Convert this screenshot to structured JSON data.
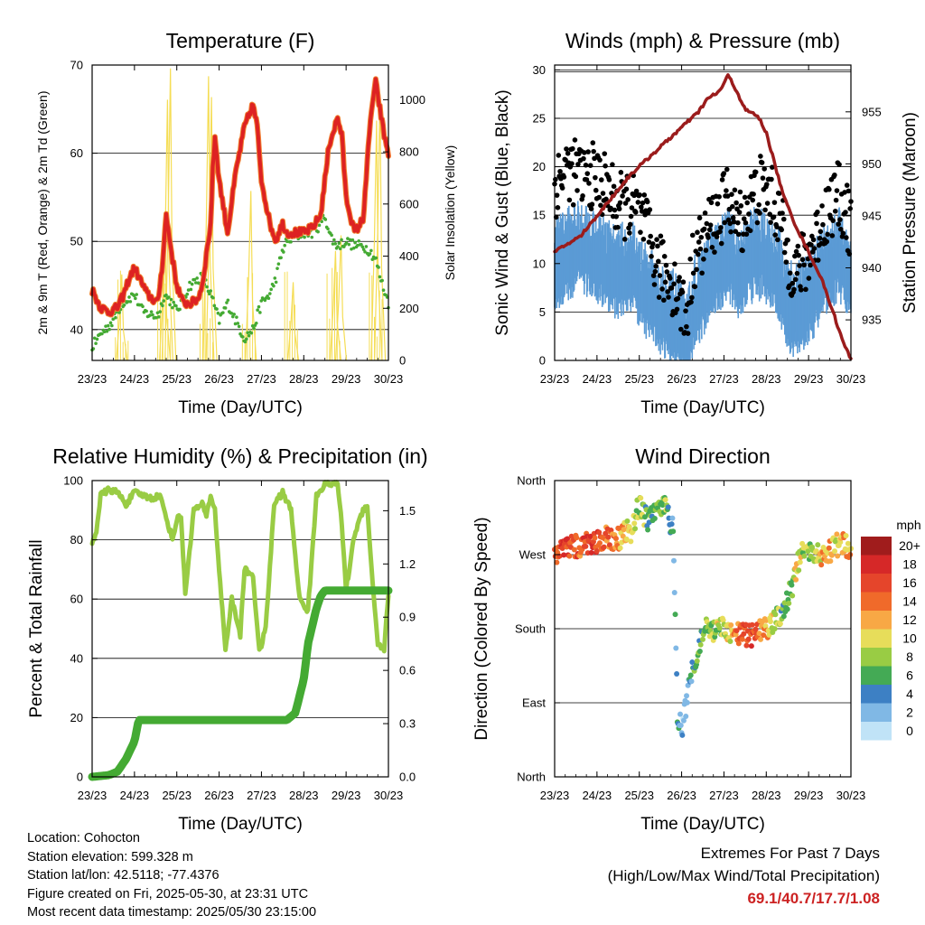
{
  "chart_data": [
    {
      "type": "line",
      "title": "Temperature (F)",
      "xlabel": "Time (Day/UTC)",
      "ylabel": "2m & 9m T (Red, Orange) & 2m Td (Green)",
      "ylabel_right": "Solar Insolation (Yellow)",
      "x_tick_labels": [
        "23/23",
        "24/23",
        "25/23",
        "26/23",
        "27/23",
        "28/23",
        "29/23",
        "30/23"
      ],
      "x_range_days": [
        0,
        7
      ],
      "ylim": [
        36.5,
        70
      ],
      "yticks": [
        40,
        50,
        60,
        70
      ],
      "ylim_right": [
        0,
        1133
      ],
      "yticks_right": [
        0,
        200,
        400,
        600,
        800,
        1000
      ],
      "grid_y": [
        40,
        50,
        60,
        70
      ],
      "colors": {
        "t2m": "#dd2222",
        "t9m": "#f08030",
        "td": "#44aa33",
        "solar": "#f5dd55"
      },
      "series": [
        {
          "name": "2m T",
          "color": "#dd2222",
          "x": [
            0,
            0.2,
            0.4,
            0.6,
            0.75,
            0.85,
            1.0,
            1.3,
            1.55,
            1.65,
            1.75,
            1.9,
            2.0,
            2.15,
            2.35,
            2.5,
            2.6,
            2.8,
            2.85,
            2.9,
            3.0,
            3.2,
            3.4,
            3.6,
            3.8,
            3.9,
            4.0,
            4.2,
            4.35,
            4.4,
            4.5,
            4.6,
            4.8,
            5.0,
            5.2,
            5.4,
            5.6,
            5.8,
            5.9,
            6.0,
            6.2,
            6.4,
            6.55,
            6.6,
            6.7,
            6.8,
            6.9,
            7.0
          ],
          "y": [
            44.5,
            42.5,
            42,
            42.5,
            44,
            45.5,
            47,
            44,
            43,
            47,
            53,
            48,
            45,
            43,
            43,
            43.5,
            45,
            52,
            58,
            62,
            57,
            51,
            58,
            63,
            65.5,
            63,
            57,
            52,
            50,
            51,
            52,
            51,
            51,
            51,
            51.5,
            53,
            61,
            64,
            62,
            55,
            51,
            52.5,
            62,
            65,
            68,
            65,
            62,
            60
          ]
        },
        {
          "name": "Td",
          "color": "#44aa33",
          "x": [
            0,
            0.2,
            0.5,
            0.7,
            1.0,
            1.2,
            1.5,
            1.6,
            1.7,
            1.9,
            2.0,
            2.3,
            2.6,
            2.8,
            3.0,
            3.2,
            3.4,
            3.6,
            3.8,
            4.0,
            4.2,
            4.35,
            4.5,
            4.6,
            4.8,
            5.0,
            5.2,
            5.4,
            5.5,
            5.6,
            5.7,
            5.8,
            6.0,
            6.2,
            6.4,
            6.55,
            6.7,
            6.8,
            7.0
          ],
          "y": [
            38,
            39.5,
            41,
            43,
            44,
            42,
            41.5,
            42,
            44,
            43,
            42,
            45,
            46,
            44,
            41,
            43,
            41,
            39,
            40,
            43,
            44,
            46,
            49,
            50,
            50.5,
            51,
            51,
            52,
            53,
            51,
            50,
            49.5,
            50,
            49.5,
            49.5,
            49,
            48,
            46,
            43
          ]
        },
        {
          "name": "Solar Insolation",
          "color": "#f5dd55",
          "axis": "right",
          "peaks": [
            {
              "x": 0.7,
              "v": 330
            },
            {
              "x": 1.72,
              "v": 500
            },
            {
              "x": 1.78,
              "v": 1000
            },
            {
              "x": 1.85,
              "v": 1120
            },
            {
              "x": 2.75,
              "v": 1090
            },
            {
              "x": 2.82,
              "v": 1010
            },
            {
              "x": 3.75,
              "v": 650
            },
            {
              "x": 4.75,
              "v": 300
            },
            {
              "x": 5.75,
              "v": 420
            },
            {
              "x": 5.88,
              "v": 480
            },
            {
              "x": 6.72,
              "v": 920
            },
            {
              "x": 6.8,
              "v": 1020
            }
          ]
        }
      ]
    },
    {
      "type": "scatter",
      "title": "Winds (mph) & Pressure (mb)",
      "xlabel": "Time (Day/UTC)",
      "ylabel": "Sonic Wind & Gust (Blue, Black)",
      "ylabel_right": "Station Pressure (Maroon)",
      "x_tick_labels": [
        "23/23",
        "24/23",
        "25/23",
        "26/23",
        "27/23",
        "28/23",
        "29/23",
        "30/23"
      ],
      "ylim": [
        0,
        30.5
      ],
      "yticks": [
        0,
        5,
        10,
        15,
        20,
        25,
        30
      ],
      "ylim_right": [
        931.1,
        959.5
      ],
      "yticks_right": [
        935,
        940,
        945,
        950,
        955
      ],
      "grid_y": [
        5,
        10,
        15,
        20,
        25,
        30
      ],
      "colors": {
        "wind": "#5b9bd5",
        "gust": "#000000",
        "pressure": "#9b1c1c"
      },
      "series": [
        {
          "name": "Sonic Wind",
          "color": "#5b9bd5",
          "x": [
            0,
            0.3,
            0.6,
            0.9,
            1.2,
            1.5,
            1.8,
            2.0,
            2.2,
            2.4,
            2.6,
            2.8,
            3.0,
            3.1,
            3.3,
            3.5,
            3.7,
            3.9,
            4.1,
            4.3,
            4.5,
            4.7,
            4.9,
            5.1,
            5.3,
            5.5,
            5.7,
            5.9,
            6.1,
            6.3,
            6.5,
            6.7,
            7.0
          ],
          "y": [
            10,
            11,
            12,
            11,
            10,
            9,
            10,
            8,
            7,
            6,
            5,
            4.5,
            3,
            1.5,
            6,
            7,
            9,
            10,
            11,
            9,
            10,
            11,
            11,
            10,
            9,
            6,
            5,
            6,
            7,
            9,
            10,
            11,
            9
          ]
        },
        {
          "name": "Gust",
          "color": "#000000",
          "x": [
            0,
            0.3,
            0.6,
            0.9,
            1.2,
            1.5,
            1.8,
            2.0,
            2.2,
            2.4,
            2.6,
            2.8,
            3.0,
            3.1,
            3.3,
            3.5,
            3.7,
            3.9,
            4.1,
            4.3,
            4.5,
            4.7,
            4.9,
            5.1,
            5.3,
            5.5,
            5.7,
            5.9,
            6.1,
            6.3,
            6.5,
            6.7,
            7.0
          ],
          "y": [
            18,
            20,
            19,
            19,
            18,
            16,
            16,
            15,
            13,
            10,
            9,
            8,
            6,
            4,
            11,
            12,
            14,
            15,
            17,
            14,
            15,
            17,
            18,
            17,
            15,
            11,
            9,
            10,
            12,
            14,
            16,
            17,
            14
          ]
        },
        {
          "name": "Station Pressure",
          "color": "#9b1c1c",
          "axis": "right",
          "x": [
            0,
            0.3,
            0.6,
            1.0,
            1.4,
            1.8,
            2.2,
            2.6,
            3.0,
            3.4,
            3.6,
            3.9,
            4.1,
            4.3,
            4.5,
            4.8,
            5.0,
            5.2,
            5.4,
            5.7,
            6.0,
            6.3,
            6.6,
            6.8,
            7.0
          ],
          "y": [
            941.5,
            942.3,
            943,
            945,
            947,
            949,
            950.5,
            952,
            953.5,
            955,
            956.2,
            957,
            958.5,
            957,
            955.2,
            954.6,
            953,
            950,
            947,
            944,
            941.5,
            939,
            935.5,
            933,
            931.2
          ]
        }
      ]
    },
    {
      "type": "line",
      "title": "Relative Humidity (%) & Precipitation (in)",
      "xlabel": "Time (Day/UTC)",
      "ylabel": "Percent & Total Rainfall",
      "x_tick_labels": [
        "23/23",
        "24/23",
        "25/23",
        "26/23",
        "27/23",
        "28/23",
        "29/23",
        "30/23"
      ],
      "ylim": [
        0,
        100
      ],
      "yticks": [
        0,
        20,
        40,
        60,
        80,
        100
      ],
      "ylim_right": [
        0,
        1.67
      ],
      "yticks_right": [
        0.0,
        0.3,
        0.6,
        0.9,
        1.2,
        1.5
      ],
      "grid_y": [
        20,
        40,
        60,
        80
      ],
      "colors": {
        "rh": "#99cc44",
        "precip": "#44aa33"
      },
      "series": [
        {
          "name": "Relative Humidity",
          "color": "#99cc44",
          "x": [
            0,
            0.1,
            0.2,
            0.4,
            0.6,
            0.8,
            1.0,
            1.2,
            1.4,
            1.6,
            1.8,
            1.9,
            2.0,
            2.1,
            2.2,
            2.4,
            2.6,
            2.7,
            2.8,
            2.9,
            3.0,
            3.15,
            3.3,
            3.5,
            3.6,
            3.8,
            3.95,
            4.1,
            4.3,
            4.5,
            4.7,
            4.9,
            5.1,
            5.3,
            5.5,
            5.7,
            5.8,
            5.9,
            6.0,
            6.2,
            6.4,
            6.5,
            6.6,
            6.75,
            6.9,
            7.0
          ],
          "y": [
            79,
            83,
            95,
            97,
            96,
            92,
            96,
            95,
            94,
            95,
            85,
            80,
            87,
            88,
            62,
            90,
            92,
            88,
            95,
            90,
            70,
            43,
            60,
            48,
            70,
            68,
            42,
            50,
            92,
            96,
            90,
            60,
            56,
            95,
            99,
            99,
            99,
            85,
            63,
            82,
            90,
            92,
            70,
            45,
            43,
            62
          ]
        },
        {
          "name": "Total Precipitation",
          "color": "#44aa33",
          "axis": "right",
          "x": [
            0,
            0.4,
            0.6,
            0.8,
            1.0,
            1.1,
            1.4,
            2.0,
            3.0,
            4.0,
            4.6,
            4.8,
            5.0,
            5.1,
            5.2,
            5.3,
            5.4,
            5.5,
            5.6,
            5.8,
            6.0,
            7.0
          ],
          "y": [
            0.0,
            0.01,
            0.03,
            0.1,
            0.2,
            0.32,
            0.32,
            0.32,
            0.32,
            0.32,
            0.32,
            0.36,
            0.55,
            0.75,
            0.85,
            0.95,
            1.02,
            1.05,
            1.05,
            1.05,
            1.05,
            1.05
          ]
        }
      ]
    },
    {
      "type": "scatter",
      "title": "Wind Direction",
      "xlabel": "Time (Day/UTC)",
      "ylabel": "Direction (Colored By Speed)",
      "x_tick_labels": [
        "23/23",
        "24/23",
        "25/23",
        "26/23",
        "27/23",
        "28/23",
        "29/23",
        "30/23"
      ],
      "y_tick_labels": [
        "North",
        "East",
        "South",
        "West",
        "North"
      ],
      "y_tick_values_deg": [
        0,
        90,
        180,
        270,
        360
      ],
      "ylim": [
        0,
        360
      ],
      "grid_y": [
        90,
        180,
        270
      ],
      "colorbar": {
        "title": "mph",
        "labels": [
          "20+",
          "18",
          "16",
          "14",
          "12",
          "10",
          "8",
          "6",
          "4",
          "2",
          "0"
        ],
        "colors": [
          "#a01c1c",
          "#d62828",
          "#e5452b",
          "#f06a2a",
          "#f8a845",
          "#e7dd5a",
          "#99cc44",
          "#44aa55",
          "#3d80c4",
          "#80b8e5",
          "#c0e3f7"
        ]
      },
      "series": [
        {
          "name": "Direction",
          "color": "speed",
          "x": [
            0,
            0.3,
            0.6,
            0.9,
            1.2,
            1.5,
            1.8,
            2.0,
            2.2,
            2.4,
            2.6,
            2.8,
            2.9,
            3.0,
            3.2,
            3.4,
            3.6,
            3.8,
            4.0,
            4.2,
            4.4,
            4.6,
            4.8,
            5.0,
            5.2,
            5.4,
            5.6,
            5.8,
            6.0,
            6.2,
            6.4,
            6.6,
            6.8,
            7.0
          ],
          "y": [
            270,
            280,
            280,
            285,
            290,
            290,
            300,
            330,
            310,
            320,
            330,
            300,
            80,
            55,
            120,
            160,
            180,
            175,
            180,
            172,
            173,
            172,
            175,
            180,
            190,
            200,
            230,
            270,
            270,
            275,
            265,
            280,
            285,
            275
          ],
          "speed_mph": [
            14,
            16,
            15,
            17,
            14,
            12,
            10,
            8,
            6,
            6,
            8,
            4,
            4,
            3,
            4,
            6,
            8,
            9,
            8,
            12,
            14,
            16,
            14,
            12,
            10,
            6,
            8,
            10,
            8,
            10,
            12,
            10,
            12,
            12
          ]
        }
      ]
    }
  ],
  "footer": {
    "location": "Location: Cohocton",
    "elevation": "Station elevation: 599.328 m",
    "latlon": "Station lat/lon: 42.5118; -77.4376",
    "created": "Figure created on Fri, 2025-05-30, at 23:31 UTC",
    "recent": "Most recent data timestamp: 2025/05/30 23:15:00"
  },
  "extremes": {
    "title": "Extremes For Past 7 Days",
    "subtitle": "(High/Low/Max Wind/Total Precipitation)",
    "values": "69.1/40.7/17.7/1.08"
  }
}
